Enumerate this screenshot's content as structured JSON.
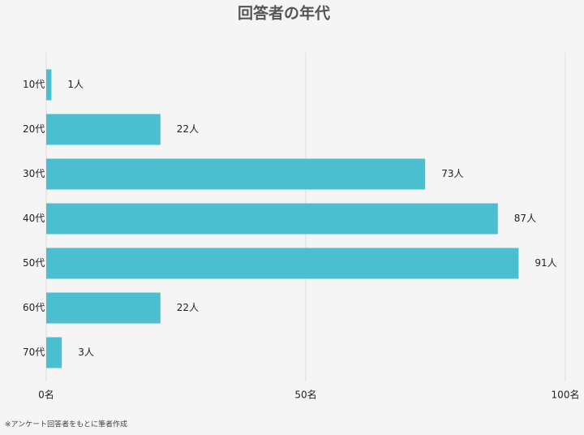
{
  "chart_data": {
    "type": "bar",
    "orientation": "horizontal",
    "title": "回答者の年代",
    "categories": [
      "10代",
      "20代",
      "30代",
      "40代",
      "50代",
      "60代",
      "70代"
    ],
    "values": [
      1,
      22,
      73,
      87,
      91,
      22,
      3
    ],
    "value_labels": [
      "1人",
      "22人",
      "73人",
      "87人",
      "91人",
      "22人",
      "3人"
    ],
    "color": "#4bbfcf",
    "xlim": [
      0,
      100
    ],
    "xticks": [
      {
        "value": 0,
        "label": "0名"
      },
      {
        "value": 50,
        "label": "50名"
      },
      {
        "value": 100,
        "label": "100名"
      }
    ],
    "grid": true,
    "source": "※アンケート回答者をもとに筆者作成"
  }
}
